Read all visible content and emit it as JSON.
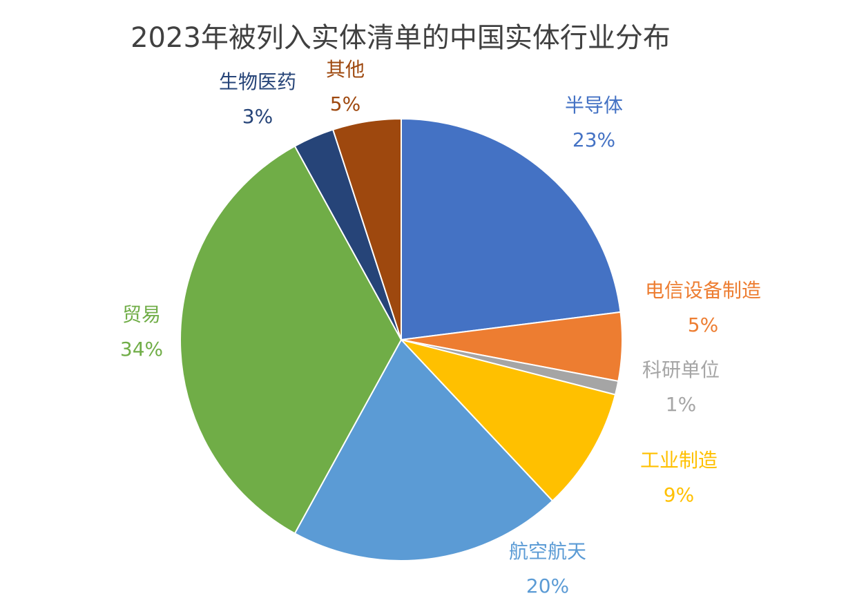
{
  "chart_data": {
    "type": "pie",
    "title": "2023年被列入实体清单的中国实体行业分布",
    "start": "12 o'clock",
    "direction": "clockwise",
    "slices": [
      {
        "label": "半导体",
        "value": 23,
        "value_label": "23%",
        "color": "#4472C4"
      },
      {
        "label": "电信设备制造",
        "value": 5,
        "value_label": "5%",
        "color": "#ED7D31"
      },
      {
        "label": "科研单位",
        "value": 1,
        "value_label": "1%",
        "color": "#A5A5A5"
      },
      {
        "label": "工业制造",
        "value": 9,
        "value_label": "9%",
        "color": "#FFC000"
      },
      {
        "label": "航空航天",
        "value": 20,
        "value_label": "20%",
        "color": "#5B9BD5"
      },
      {
        "label": "贸易",
        "value": 34,
        "value_label": "34%",
        "color": "#70AD47"
      },
      {
        "label": "生物医药",
        "value": 3,
        "value_label": "3%",
        "color": "#264478"
      },
      {
        "label": "其他",
        "value": 5,
        "value_label": "5%",
        "color": "#9E480E"
      }
    ]
  }
}
